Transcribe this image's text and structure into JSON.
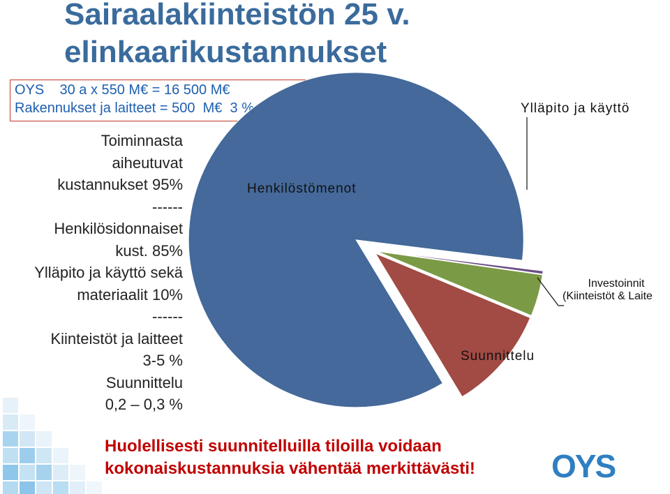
{
  "title": {
    "line1": "Sairaalakiinteistön 25 v.",
    "line2": "elinkaarikustannukset"
  },
  "cost_box": {
    "line1": "OYS    30 a x 550 M€ = 16 500 M€",
    "line2": "Rakennukset ja laitteet = 500  M€  3 %"
  },
  "breakdown": [
    "Toiminnasta",
    "aiheutuvat",
    "kustannukset 95%",
    "------",
    "Henkilösidonnaiset",
    "kust. 85%",
    "Ylläpito ja käyttö sekä",
    "materiaalit 10%",
    "------",
    "Kiinteistöt ja laitteet",
    "3-5 %",
    "Suunnittelu",
    "0,2 – 0,3 %"
  ],
  "chart_data": {
    "type": "pie",
    "title": "",
    "slices": [
      {
        "label": "Henkilöstömenot",
        "value": 85,
        "color": "#44699a"
      },
      {
        "label": "Ylläpito ja käyttö",
        "value": 10,
        "color": "#a24a44"
      },
      {
        "label": "Investoinnit (Kiinteistöt & Laite",
        "value": 4,
        "color": "#7b9a45"
      },
      {
        "label": "Suunnittelu",
        "value": 0.3,
        "color": "#6a4d86"
      }
    ],
    "exploded": true,
    "legend": "none",
    "label_lines": {
      "investoinnit_line1": "Investoinnit",
      "investoinnit_line2": "(Kiinteistöt & Laite"
    }
  },
  "conclusion": {
    "line1": "Huolellisesti suunnitelluilla tiloilla voidaan",
    "line2": "kokonaiskustannuksia vähentää merkittävästi!"
  },
  "logo": {
    "text": "OYS",
    "color": "#2f7fc1"
  },
  "colors": {
    "title": "#3a6b9c",
    "box_text": "#1f5fb0",
    "box_border": "#c0392b",
    "conclusion": "#c00000"
  }
}
